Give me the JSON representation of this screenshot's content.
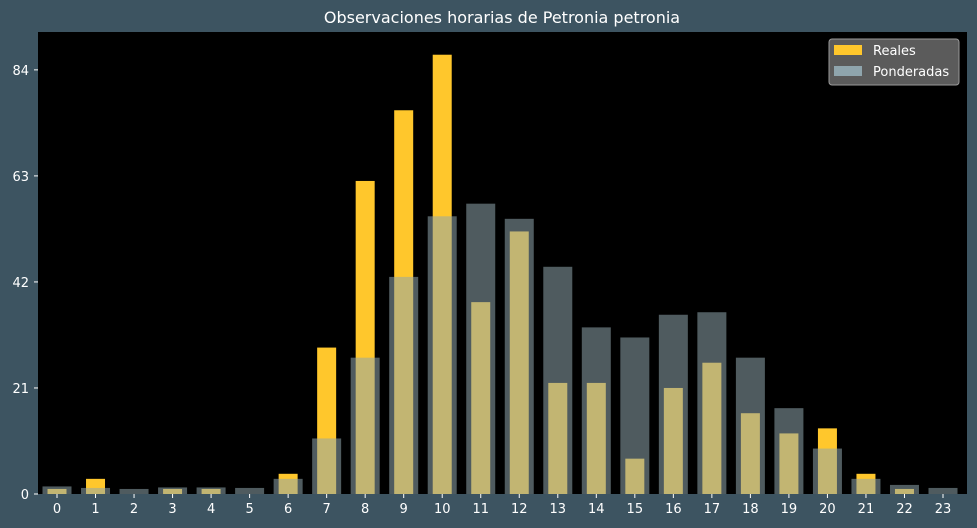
{
  "chart_data": {
    "type": "bar",
    "title": "Observaciones horarias de Petronia petronia",
    "xlabel": "",
    "ylabel": "",
    "categories": [
      "0",
      "1",
      "2",
      "3",
      "4",
      "5",
      "6",
      "7",
      "8",
      "9",
      "10",
      "11",
      "12",
      "13",
      "14",
      "15",
      "16",
      "17",
      "18",
      "19",
      "20",
      "21",
      "22",
      "23"
    ],
    "y_ticks": [
      "0",
      "21",
      "42",
      "63",
      "84"
    ],
    "ylim": [
      0,
      91.5
    ],
    "grid": false,
    "legend_position": "top-right",
    "series": [
      {
        "name": "Reales",
        "color": "#ffc72c",
        "values": [
          1,
          3,
          0,
          1,
          1,
          0,
          4,
          29,
          62,
          76,
          87,
          38,
          52,
          22,
          22,
          7,
          21,
          26,
          16,
          12,
          13,
          4,
          1,
          0
        ]
      },
      {
        "name": "Ponderadas",
        "color": "#8fa5ad",
        "values": [
          1.5,
          1.2,
          1,
          1.3,
          1.3,
          1.2,
          3,
          11,
          27,
          43,
          55,
          57.5,
          54.5,
          45,
          33,
          31,
          35.5,
          36,
          27,
          17,
          9,
          3,
          1.8,
          1.2
        ]
      }
    ]
  }
}
